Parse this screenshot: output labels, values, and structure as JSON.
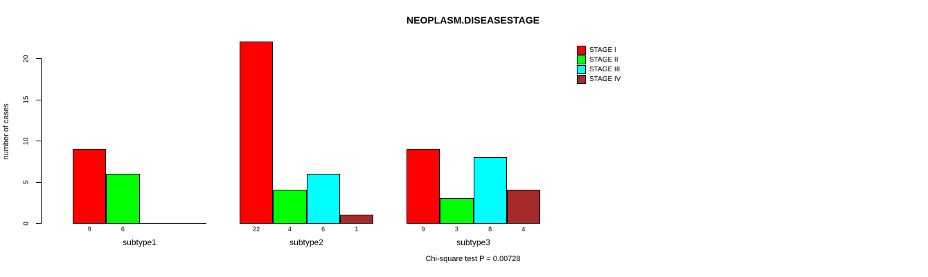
{
  "title": "NEOPLASM.DISEASESTAGE",
  "ylabel": "number of cases",
  "footer": "Chi-square test P = 0.00728",
  "chart_data": {
    "type": "bar",
    "title": "NEOPLASM.DISEASESTAGE",
    "xlabel": "",
    "ylabel": "number of cases",
    "categories": [
      "subtype1",
      "subtype2",
      "subtype3"
    ],
    "series": [
      {
        "name": "STAGE I",
        "color": "#FF0000",
        "values": [
          9,
          22,
          9
        ]
      },
      {
        "name": "STAGE II",
        "color": "#00FF00",
        "values": [
          6,
          4,
          3
        ]
      },
      {
        "name": "STAGE III",
        "color": "#00FFFF",
        "values": [
          0,
          6,
          8
        ]
      },
      {
        "name": "STAGE IV",
        "color": "#A52A2A",
        "values": [
          0,
          1,
          4
        ]
      }
    ],
    "bar_value_labels": [
      [
        "9",
        "6",
        "",
        ""
      ],
      [
        "22",
        "4",
        "6",
        "1"
      ],
      [
        "9",
        "3",
        "8",
        "4"
      ]
    ],
    "yticks": [
      0,
      5,
      10,
      15,
      20
    ],
    "ylim": [
      0,
      22
    ],
    "grid": false,
    "legend_position": "top-right",
    "annotation": "Chi-square test P = 0.00728"
  }
}
